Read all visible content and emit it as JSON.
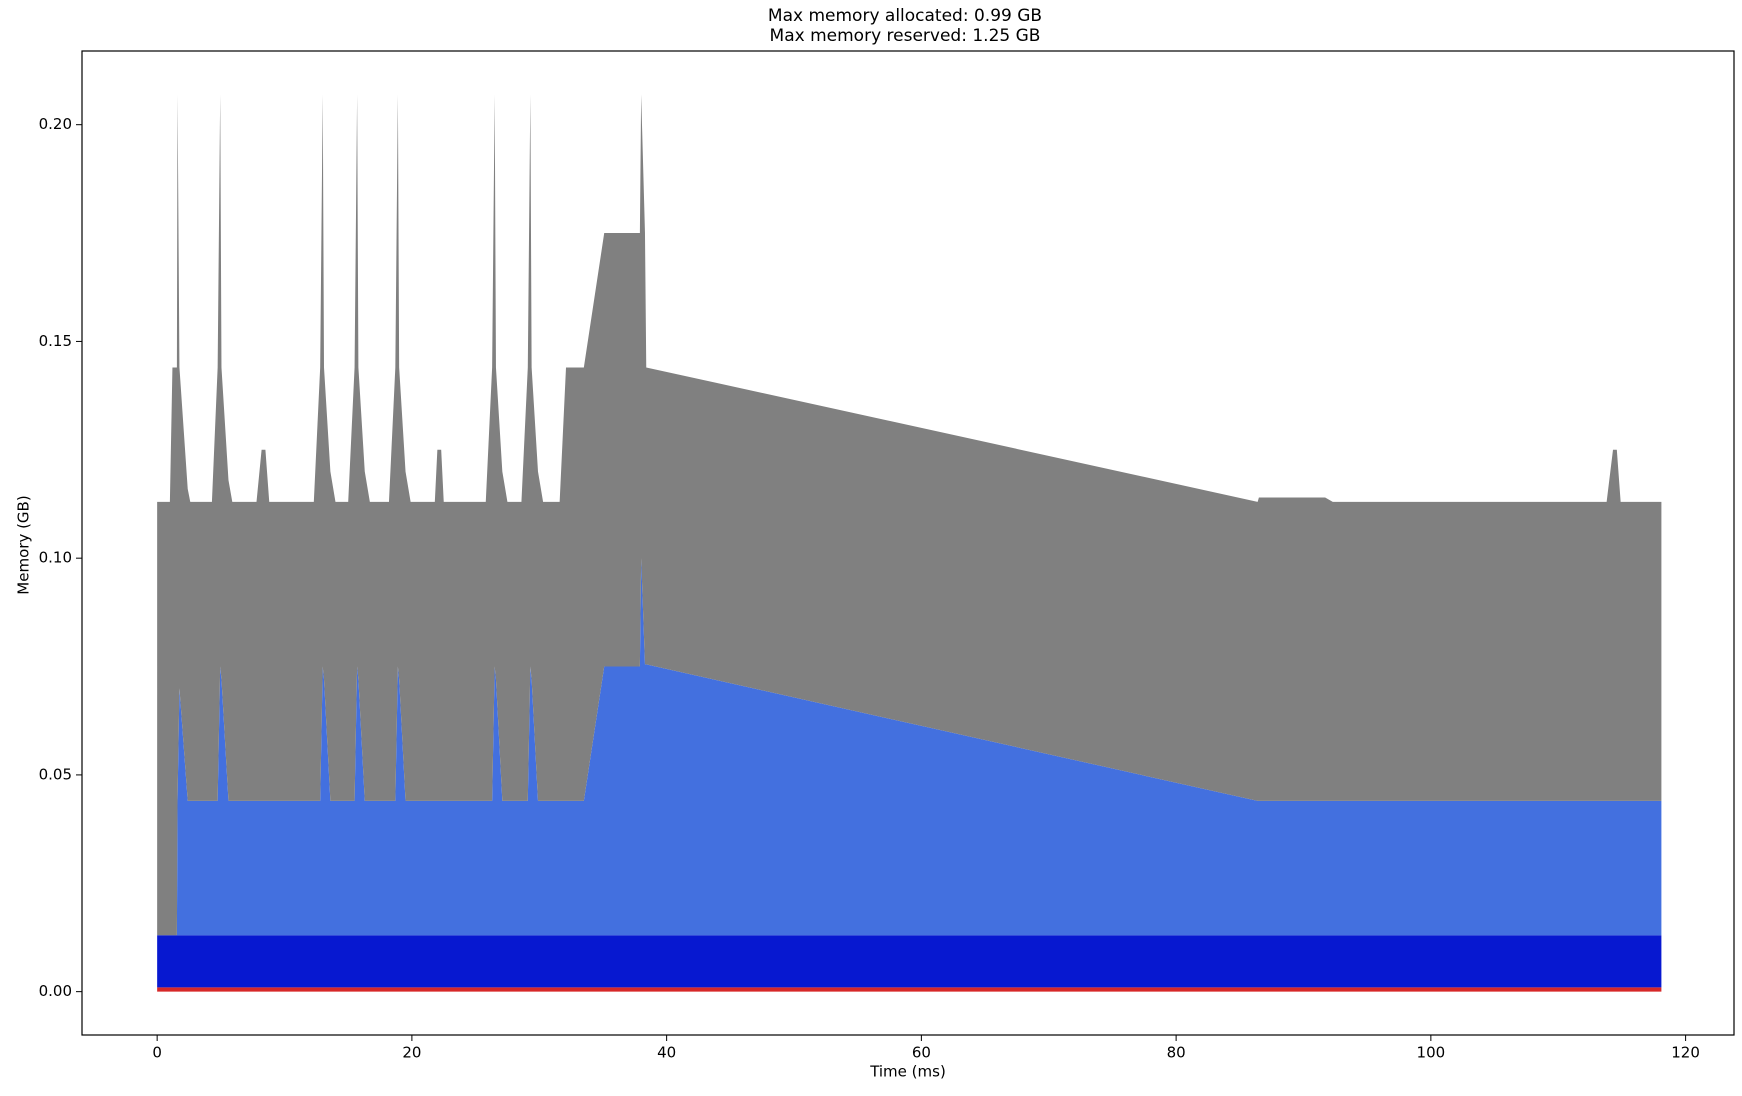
{
  "chart_data": {
    "type": "stacked_area",
    "title": [
      "Max memory allocated: 0.99 GB",
      "Max memory reserved: 1.25 GB"
    ],
    "xlabel": "Time (ms)",
    "ylabel": "Memory (GB)",
    "x": [
      0,
      1.0,
      1.2,
      1.55,
      1.6,
      1.75,
      2.4,
      2.6,
      4.3,
      4.75,
      4.95,
      5.05,
      5.6,
      5.9,
      7.8,
      8.2,
      8.5,
      8.8,
      12.3,
      12.8,
      13.0,
      13.1,
      13.6,
      14.0,
      15.0,
      15.5,
      15.7,
      15.8,
      16.3,
      16.7,
      18.2,
      18.7,
      18.9,
      19.0,
      19.5,
      19.9,
      21.8,
      22.0,
      22.3,
      22.5,
      25.8,
      26.3,
      26.5,
      26.6,
      27.1,
      27.5,
      28.6,
      29.1,
      29.3,
      29.4,
      29.9,
      30.3,
      31.6,
      32.1,
      33.5,
      35.1,
      37.9,
      38.0,
      38.3,
      38.4,
      86.4,
      86.5,
      91.7,
      92.3,
      113.8,
      114.3,
      114.6,
      114.9,
      118.1
    ],
    "series": [
      {
        "color": "#d62728",
        "values": [
          0.001,
          0.001,
          0.001,
          0.001,
          0.001,
          0.001,
          0.001,
          0.001,
          0.001,
          0.001,
          0.001,
          0.001,
          0.001,
          0.001,
          0.001,
          0.001,
          0.001,
          0.001,
          0.001,
          0.001,
          0.001,
          0.001,
          0.001,
          0.001,
          0.001,
          0.001,
          0.001,
          0.001,
          0.001,
          0.001,
          0.001,
          0.001,
          0.001,
          0.001,
          0.001,
          0.001,
          0.001,
          0.001,
          0.001,
          0.001,
          0.001,
          0.001,
          0.001,
          0.001,
          0.001,
          0.001,
          0.001,
          0.001,
          0.001,
          0.001,
          0.001,
          0.001,
          0.001,
          0.001,
          0.001,
          0.001,
          0.001,
          0.001,
          0.001,
          0.001,
          0.001,
          0.001,
          0.001,
          0.001,
          0.001,
          0.001,
          0.001,
          0.001,
          0.001
        ]
      },
      {
        "color": "#0718d0",
        "values": [
          0.012,
          0.012,
          0.012,
          0.012,
          0.012,
          0.012,
          0.012,
          0.012,
          0.012,
          0.012,
          0.012,
          0.012,
          0.012,
          0.012,
          0.012,
          0.012,
          0.012,
          0.012,
          0.012,
          0.012,
          0.012,
          0.012,
          0.012,
          0.012,
          0.012,
          0.012,
          0.012,
          0.012,
          0.012,
          0.012,
          0.012,
          0.012,
          0.012,
          0.012,
          0.012,
          0.012,
          0.012,
          0.012,
          0.012,
          0.012,
          0.012,
          0.012,
          0.012,
          0.012,
          0.012,
          0.012,
          0.012,
          0.012,
          0.012,
          0.012,
          0.012,
          0.012,
          0.012,
          0.012,
          0.012,
          0.012,
          0.012,
          0.012,
          0.012,
          0.012,
          0.012,
          0.012,
          0.012,
          0.012,
          0.012,
          0.012,
          0.012,
          0.012,
          0.012
        ]
      },
      {
        "color": "#4370df",
        "values": [
          0,
          0,
          0,
          0,
          0.031,
          0.057,
          0.031,
          0.031,
          0.031,
          0.031,
          0.062,
          0.059,
          0.031,
          0.031,
          0.031,
          0.031,
          0.031,
          0.031,
          0.031,
          0.031,
          0.062,
          0.059,
          0.031,
          0.031,
          0.031,
          0.031,
          0.062,
          0.059,
          0.031,
          0.031,
          0.031,
          0.031,
          0.062,
          0.059,
          0.031,
          0.031,
          0.031,
          0.031,
          0.031,
          0.031,
          0.031,
          0.031,
          0.062,
          0.059,
          0.031,
          0.031,
          0.031,
          0.031,
          0.062,
          0.059,
          0.031,
          0.031,
          0.031,
          0.031,
          0.031,
          0.062,
          0.062,
          0.087,
          0.0625,
          0.0625,
          0.031,
          0.031,
          0.031,
          0.031,
          0.031,
          0.031,
          0.031,
          0.031,
          0.031
        ]
      },
      {
        "color": "#808080",
        "values": [
          0.1,
          0.1,
          0.131,
          0.131,
          0.163,
          0.074,
          0.072,
          0.069,
          0.069,
          0.1,
          0.132,
          0.072,
          0.074,
          0.069,
          0.069,
          0.081,
          0.081,
          0.069,
          0.069,
          0.1,
          0.132,
          0.072,
          0.076,
          0.069,
          0.069,
          0.1,
          0.132,
          0.072,
          0.076,
          0.069,
          0.069,
          0.1,
          0.132,
          0.072,
          0.076,
          0.069,
          0.069,
          0.081,
          0.081,
          0.069,
          0.069,
          0.1,
          0.132,
          0.072,
          0.076,
          0.069,
          0.069,
          0.1,
          0.132,
          0.072,
          0.076,
          0.069,
          0.069,
          0.1,
          0.1,
          0.1,
          0.1,
          0.107,
          0.0995,
          0.0685,
          0.069,
          0.07,
          0.07,
          0.069,
          0.069,
          0.081,
          0.081,
          0.069,
          0.069
        ]
      }
    ],
    "xlim": [
      -5.9,
      123.8
    ],
    "ylim": [
      -0.01,
      0.217
    ],
    "xticks": [
      0,
      20,
      40,
      60,
      80,
      100,
      120
    ],
    "yticks": [
      {
        "value": 0,
        "label": "0.00"
      },
      0.05,
      {
        "value": 0.1,
        "label": "0.10"
      },
      0.15,
      {
        "value": 0.2,
        "label": "0.20"
      }
    ]
  }
}
